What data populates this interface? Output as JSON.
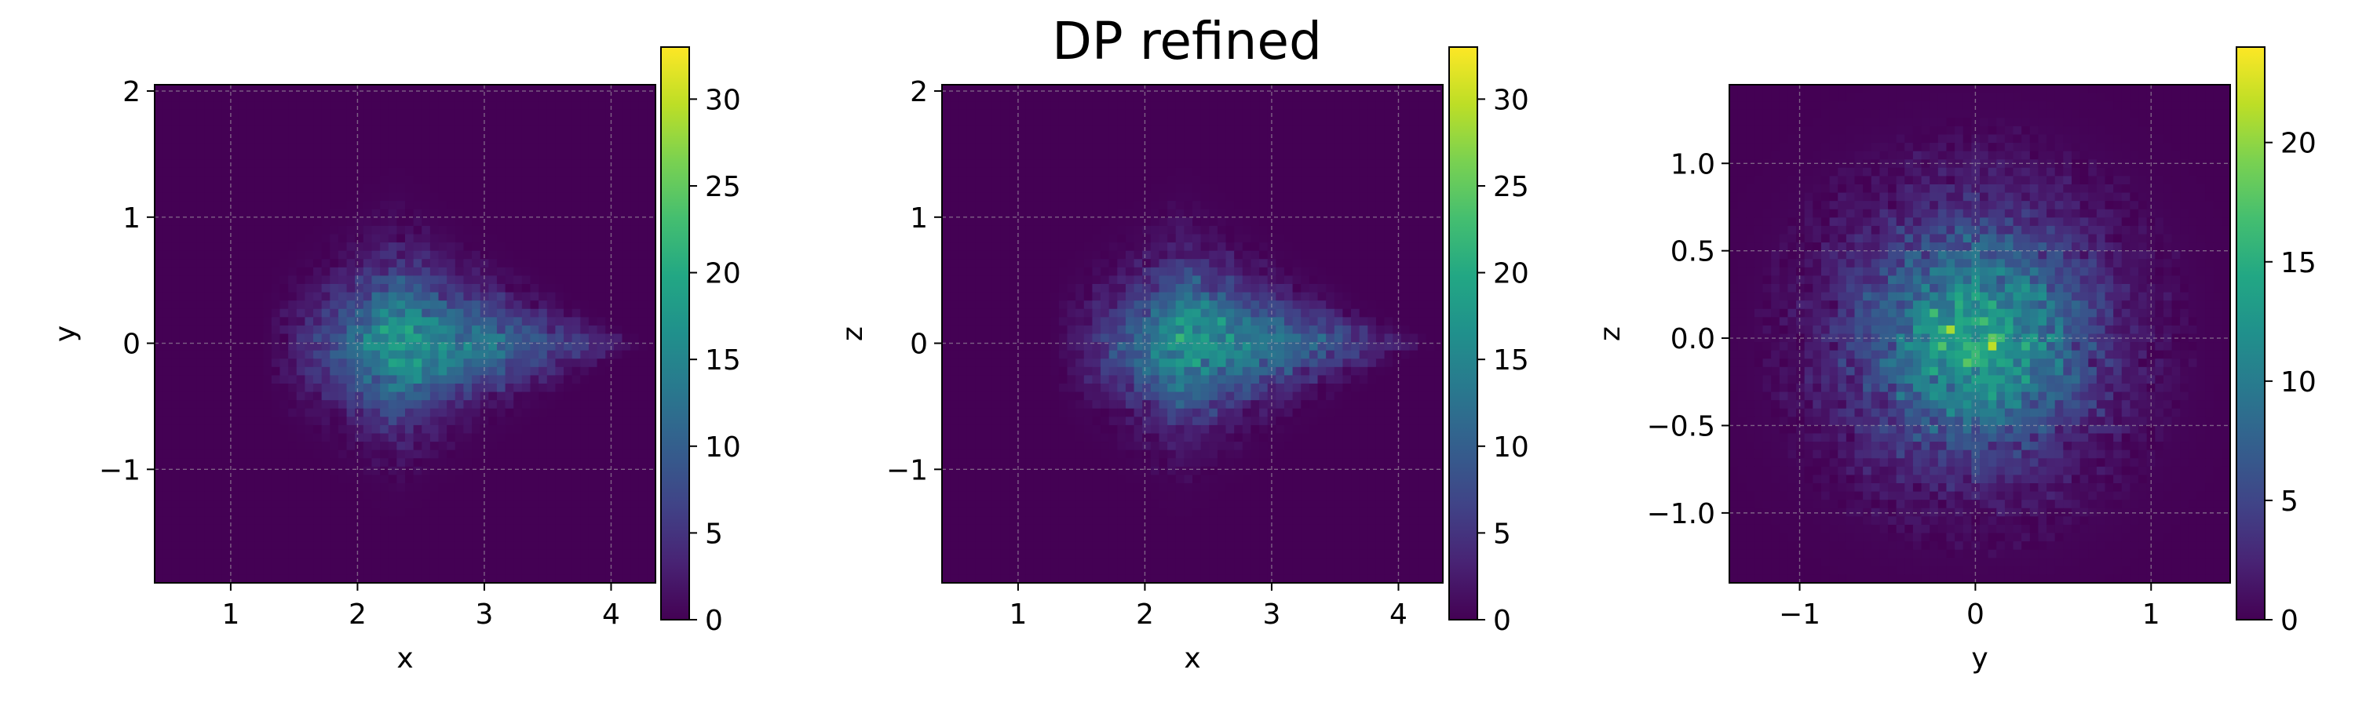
{
  "figure": {
    "title": "DP refined"
  },
  "chart_data": [
    {
      "type": "heatmap",
      "xlabel": "x",
      "ylabel": "y",
      "xlim": [
        0.4,
        4.35
      ],
      "ylim": [
        -1.9,
        2.05
      ],
      "xticks": [
        1,
        2,
        3,
        4
      ],
      "xtick_labels": [
        "1",
        "2",
        "3",
        "4"
      ],
      "yticks": [
        -1,
        0,
        1,
        2
      ],
      "ytick_labels": [
        "−1",
        "0",
        "1",
        "2"
      ],
      "grid": true,
      "colormap": "viridis",
      "colorbar": {
        "range": [
          0,
          33
        ],
        "ticks": [
          0,
          5,
          10,
          15,
          20,
          25,
          30
        ],
        "tick_labels": [
          "0",
          "5",
          "10",
          "15",
          "20",
          "25",
          "30"
        ]
      },
      "bins": {
        "nx": 60,
        "ny": 60
      },
      "density": {
        "kind": "cone",
        "apex": [
          1.6,
          0
        ],
        "peak": [
          2.3,
          0
        ],
        "tip": 4.3,
        "width_at_peak": 0.55,
        "max_count": 33,
        "mean_count": 18
      }
    },
    {
      "type": "heatmap",
      "xlabel": "x",
      "ylabel": "z",
      "xlim": [
        0.4,
        4.35
      ],
      "ylim": [
        -1.9,
        2.05
      ],
      "xticks": [
        1,
        2,
        3,
        4
      ],
      "xtick_labels": [
        "1",
        "2",
        "3",
        "4"
      ],
      "yticks": [
        -1,
        0,
        1,
        2
      ],
      "ytick_labels": [
        "−1",
        "0",
        "1",
        "2"
      ],
      "grid": true,
      "colormap": "viridis",
      "colorbar": {
        "range": [
          0,
          33
        ],
        "ticks": [
          0,
          5,
          10,
          15,
          20,
          25,
          30
        ],
        "tick_labels": [
          "0",
          "5",
          "10",
          "15",
          "20",
          "25",
          "30"
        ]
      },
      "bins": {
        "nx": 60,
        "ny": 60
      },
      "density": {
        "kind": "cone",
        "apex": [
          1.6,
          0
        ],
        "peak": [
          2.3,
          0
        ],
        "tip": 4.3,
        "width_at_peak": 0.55,
        "max_count": 33,
        "mean_count": 18
      }
    },
    {
      "type": "heatmap",
      "xlabel": "y",
      "ylabel": "z",
      "xlim": [
        -1.4,
        1.45
      ],
      "ylim": [
        -1.4,
        1.45
      ],
      "xticks": [
        -1,
        0,
        1
      ],
      "xtick_labels": [
        "−1",
        "0",
        "1"
      ],
      "yticks": [
        -1.0,
        -0.5,
        0.0,
        0.5,
        1.0
      ],
      "ytick_labels": [
        "−1.0",
        "−0.5",
        "0.0",
        "0.5",
        "1.0"
      ],
      "grid": true,
      "colormap": "viridis",
      "colorbar": {
        "range": [
          0,
          24
        ],
        "ticks": [
          0,
          5,
          10,
          15,
          20
        ],
        "tick_labels": [
          "0",
          "5",
          "10",
          "15",
          "20"
        ]
      },
      "bins": {
        "nx": 60,
        "ny": 60
      },
      "density": {
        "kind": "gaussian",
        "center": [
          0,
          0
        ],
        "sigma": 0.45,
        "max_count": 24,
        "mean_count": 14
      }
    }
  ]
}
